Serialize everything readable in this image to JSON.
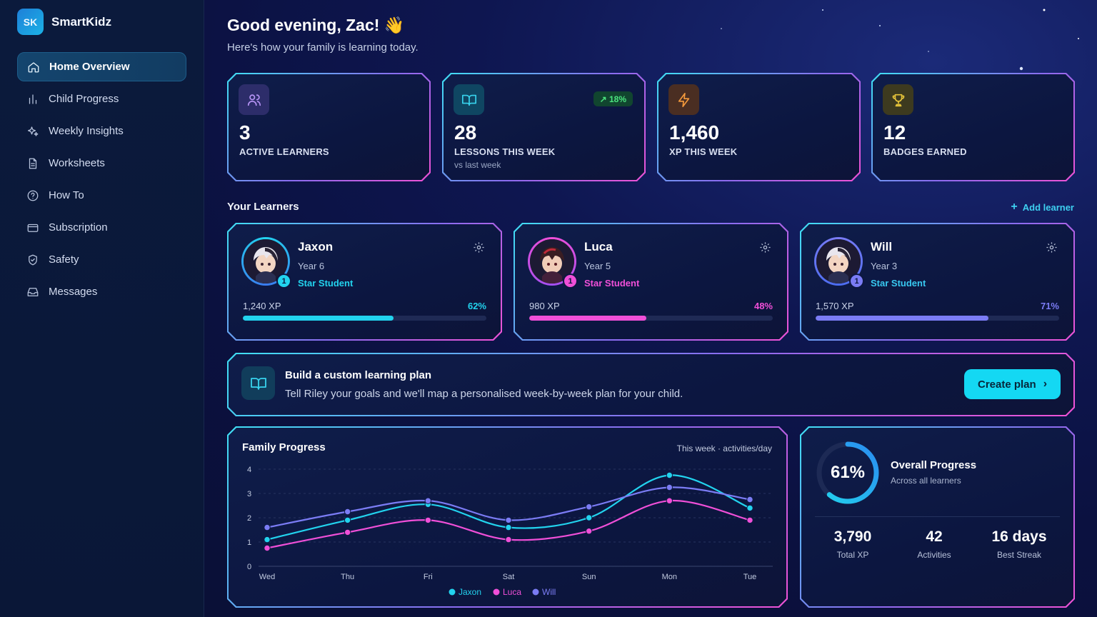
{
  "brand": {
    "logo_text": "SK",
    "name": "SmartKidz"
  },
  "nav": [
    {
      "label": "Home Overview",
      "icon": "home-icon",
      "active": true
    },
    {
      "label": "Child Progress",
      "icon": "bar-chart-icon"
    },
    {
      "label": "Weekly Insights",
      "icon": "sparkles-icon"
    },
    {
      "label": "Worksheets",
      "icon": "document-icon"
    },
    {
      "label": "How To",
      "icon": "help-circle-icon"
    },
    {
      "label": "Subscription",
      "icon": "credit-card-icon"
    },
    {
      "label": "Safety",
      "icon": "shield-icon"
    },
    {
      "label": "Messages",
      "icon": "inbox-icon"
    }
  ],
  "header": {
    "greeting": "Good evening, Zac! 👋",
    "subtitle": "Here's how your family is learning today."
  },
  "stats": [
    {
      "value": "3",
      "label": "ACTIVE LEARNERS",
      "icon": "users-icon",
      "color": "#b794f6"
    },
    {
      "value": "28",
      "label": "LESSONS THIS WEEK",
      "note": "vs last week",
      "trend": "↗ 18%",
      "icon": "book-icon",
      "color": "#38d4ee"
    },
    {
      "value": "1,460",
      "label": "XP THIS WEEK",
      "icon": "lightning-icon",
      "color": "#f59a3c"
    },
    {
      "value": "12",
      "label": "BADGES EARNED",
      "icon": "trophy-icon",
      "color": "#e8c53a"
    }
  ],
  "learners_section": {
    "title": "Your Learners",
    "add_label": "Add learner"
  },
  "learners": [
    {
      "name": "Jaxon",
      "year": "Year 6",
      "rank": "Star Student",
      "level": "1",
      "xp": "1,240 XP",
      "percent_label": "62%",
      "progress": 0.62,
      "color": "#22d3ee"
    },
    {
      "name": "Luca",
      "year": "Year 5",
      "rank": "Star Student",
      "level": "1",
      "xp": "980 XP",
      "percent_label": "48%",
      "progress": 0.48,
      "color": "#f04fd8"
    },
    {
      "name": "Will",
      "year": "Year 3",
      "rank": "Star Student",
      "level": "1",
      "xp": "1,570 XP",
      "percent_label": "71%",
      "progress": 0.71,
      "color": "#7b7cf5"
    }
  ],
  "plan": {
    "title": "Build a custom learning plan",
    "description": "Tell Riley your goals and we'll map a personalised week-by-week plan for your child.",
    "button": "Create plan"
  },
  "family_progress": {
    "title": "Family Progress",
    "meta": "This week · activities/day"
  },
  "chart_data": {
    "type": "line",
    "title": "Family Progress",
    "categories": [
      "Wed",
      "Thu",
      "Fri",
      "Sat",
      "Sun",
      "Mon",
      "Tue"
    ],
    "ylim": [
      0,
      4
    ],
    "yticks": [
      "0",
      "1",
      "2",
      "3",
      "4"
    ],
    "grid": true,
    "legend_position": "bottom",
    "series": [
      {
        "name": "Jaxon",
        "color": "#22d3ee",
        "values": [
          1.1,
          1.9,
          2.55,
          1.6,
          2.0,
          3.75,
          2.4
        ]
      },
      {
        "name": "Luca",
        "color": "#f04fd8",
        "values": [
          0.75,
          1.4,
          1.9,
          1.1,
          1.45,
          2.7,
          1.9
        ]
      },
      {
        "name": "Will",
        "color": "#7b7cf5",
        "values": [
          1.6,
          2.25,
          2.7,
          1.9,
          2.45,
          3.25,
          2.75
        ]
      }
    ]
  },
  "overall": {
    "percent_label": "61%",
    "progress": 0.61,
    "title": "Overall Progress",
    "subtitle": "Across all learners",
    "stats": [
      {
        "value": "3,790",
        "label": "Total XP"
      },
      {
        "value": "42",
        "label": "Activities"
      },
      {
        "value": "16 days",
        "label": "Best Streak"
      }
    ]
  }
}
